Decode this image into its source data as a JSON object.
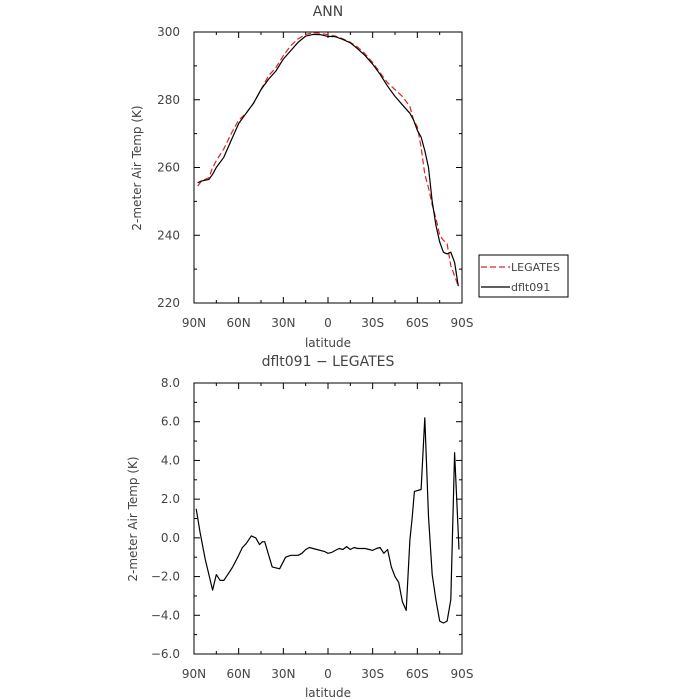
{
  "chart_data": [
    {
      "type": "line",
      "title": "ANN",
      "xlabel": "latitude",
      "ylabel": "2-meter Air Temp (K)",
      "xlim": [
        90,
        -90
      ],
      "ylim": [
        220,
        300
      ],
      "xticks": [
        90,
        60,
        30,
        0,
        -30,
        -60,
        -90
      ],
      "xtick_labels": [
        "90N",
        "60N",
        "30N",
        "0",
        "30S",
        "60S",
        "90S"
      ],
      "yticks": [
        220,
        240,
        260,
        280,
        300
      ],
      "ytick_labels": [
        "220",
        "240",
        "260",
        "280",
        "300"
      ],
      "legend": "right",
      "series": [
        {
          "name": "LEGATES",
          "color": "#e02020",
          "dash": true,
          "x": [
            87.5,
            85,
            80,
            77.5,
            75,
            70,
            65,
            60,
            55,
            50,
            45,
            40,
            35,
            30,
            25,
            20,
            15,
            10,
            5,
            0,
            -5,
            -10,
            -15,
            -20,
            -25,
            -30,
            -35,
            -40,
            -45,
            -50,
            -55,
            -57.5,
            -60,
            -62.5,
            -65,
            -67.5,
            -70,
            -72.5,
            -75,
            -77.5,
            -80,
            -82.5,
            -85,
            -87.5
          ],
          "y": [
            254.5,
            256,
            257,
            260,
            262,
            265.5,
            270,
            274,
            276,
            279,
            283,
            287,
            289.5,
            293,
            296,
            298,
            299.3,
            299.8,
            299.6,
            299.2,
            298.8,
            298,
            297,
            295.5,
            293.5,
            291,
            288,
            285,
            283,
            281,
            278,
            274,
            272,
            266,
            258,
            254,
            249,
            245,
            240,
            238.5,
            237.5,
            231,
            228,
            225
          ]
        },
        {
          "name": "dflt091",
          "color": "#000000",
          "dash": false,
          "x": [
            87.5,
            85,
            80,
            77.5,
            75,
            70,
            65,
            60,
            55,
            50,
            45,
            40,
            35,
            30,
            25,
            20,
            15,
            10,
            5,
            0,
            -5,
            -10,
            -15,
            -20,
            -25,
            -30,
            -35,
            -40,
            -45,
            -50,
            -55,
            -57.5,
            -60,
            -62.5,
            -65,
            -67.5,
            -70,
            -72.5,
            -75,
            -77.5,
            -80,
            -82.5,
            -85,
            -87.5
          ],
          "y": [
            255.5,
            256,
            256.5,
            258,
            260,
            263,
            268,
            273,
            276,
            279,
            283,
            286,
            288.5,
            292,
            294.5,
            297,
            298.8,
            299.3,
            299.2,
            298.7,
            298.6,
            297.8,
            296.8,
            295,
            293,
            290.5,
            287.5,
            284,
            281,
            278.5,
            276,
            274,
            271,
            269,
            265,
            260,
            250,
            243,
            238,
            235,
            234.5,
            235,
            232,
            225
          ]
        }
      ]
    },
    {
      "type": "line",
      "title": "dflt091 − LEGATES",
      "xlabel": "latitude",
      "ylabel": "2-meter Air Temp (K)",
      "xlim": [
        90,
        -90
      ],
      "ylim": [
        -6,
        8
      ],
      "xticks": [
        90,
        60,
        30,
        0,
        -30,
        -60,
        -90
      ],
      "xtick_labels": [
        "90N",
        "60N",
        "30N",
        "0",
        "30S",
        "60S",
        "90S"
      ],
      "yticks": [
        -6,
        -4,
        -2,
        0,
        2,
        4,
        6,
        8
      ],
      "ytick_labels": [
        "−6.0",
        "−4.0",
        "−2.0",
        "0.0",
        "2.0",
        "4.0",
        "6.0",
        "8.0"
      ],
      "series": [
        {
          "color": "#000000",
          "dash": false,
          "x": [
            88.5,
            86,
            82.5,
            77.5,
            75,
            72.5,
            70,
            66.5,
            64,
            60,
            57.5,
            55,
            51.5,
            48.5,
            46,
            44,
            42.5,
            37.5,
            32.5,
            28.5,
            25,
            20,
            17.5,
            15,
            12.5,
            10,
            7.5,
            2.5,
            0,
            -2.5,
            -5,
            -7.5,
            -10,
            -12.5,
            -15,
            -17.5,
            -20,
            -25,
            -30,
            -32.5,
            -35,
            -37.5,
            -40,
            -42.5,
            -45,
            -47.5,
            -50,
            -52.5,
            -55,
            -56.5,
            -58,
            -62.5,
            -65,
            -67.5,
            -70,
            -72.5,
            -75,
            -77.5,
            -80,
            -82.5,
            -85,
            -88
          ],
          "y": [
            1.5,
            0.3,
            -1.1,
            -2.7,
            -1.9,
            -2.2,
            -2.2,
            -1.8,
            -1.5,
            -0.9,
            -0.5,
            -0.3,
            0.1,
            0,
            -0.35,
            -0.2,
            -0.2,
            -1.5,
            -1.6,
            -1.0,
            -0.9,
            -0.9,
            -0.8,
            -0.6,
            -0.5,
            -0.55,
            -0.6,
            -0.7,
            -0.8,
            -0.75,
            -0.65,
            -0.55,
            -0.6,
            -0.45,
            -0.6,
            -0.5,
            -0.55,
            -0.55,
            -0.65,
            -0.55,
            -0.5,
            -0.8,
            -0.6,
            -1.5,
            -2.0,
            -2.3,
            -3.3,
            -3.75,
            -0.1,
            1.0,
            2.4,
            2.5,
            6.2,
            1.1,
            -1.9,
            -3.2,
            -4.3,
            -4.4,
            -4.3,
            -3.2,
            4.4,
            -0.6
          ]
        }
      ]
    }
  ]
}
